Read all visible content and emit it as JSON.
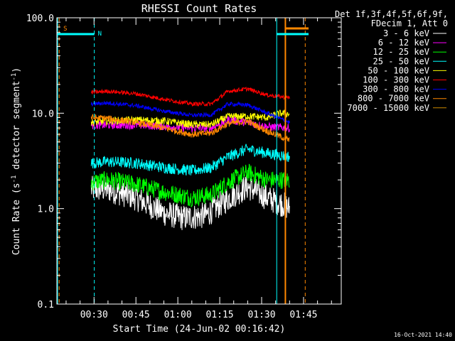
{
  "chart_data": {
    "type": "line",
    "title": "RHESSI Count Rates",
    "xlabel": "Start Time (24-Jun-02 00:16:42)",
    "ylabel": "Count Rate (s⁻¹ detector segment⁻¹)",
    "ylabel_parts": [
      "Count Rate (s",
      "-1",
      " detector segment",
      "-1",
      ")"
    ],
    "yscale": "log",
    "ylim": [
      0.1,
      100.0
    ],
    "xlim_minutes": [
      16.7,
      118.5
    ],
    "y_ticks": [
      {
        "value": 0.1,
        "label": "0.1"
      },
      {
        "value": 1.0,
        "label": "1.0"
      },
      {
        "value": 10.0,
        "label": "10.0"
      },
      {
        "value": 100.0,
        "label": "100.0"
      }
    ],
    "x_ticks": [
      {
        "value": 30,
        "label": "00:30"
      },
      {
        "value": 45,
        "label": "00:45"
      },
      {
        "value": 60,
        "label": "01:00"
      },
      {
        "value": 75,
        "label": "01:15"
      },
      {
        "value": 90,
        "label": "01:30"
      },
      {
        "value": 105,
        "label": "01:45"
      }
    ],
    "legend_header": [
      "Det 1f,3f,4f,5f,6f,9f,",
      "FDecim 1, Att 0"
    ],
    "series": [
      {
        "name": "3 - 6 keV",
        "color": "#ffffff",
        "points": [
          [
            29,
            1.6
          ],
          [
            35,
            1.6
          ],
          [
            45,
            1.3
          ],
          [
            55,
            0.9
          ],
          [
            62,
            0.8
          ],
          [
            70,
            0.85
          ],
          [
            75,
            1.1
          ],
          [
            80,
            1.4
          ],
          [
            85,
            1.7
          ],
          [
            92,
            1.3
          ],
          [
            98,
            1.1
          ],
          [
            100,
            1.0
          ]
        ]
      },
      {
        "name": "6 - 12 keV",
        "color": "#ff00ff",
        "points": [
          [
            29,
            7.5
          ],
          [
            35,
            7.5
          ],
          [
            45,
            7.5
          ],
          [
            55,
            7.3
          ],
          [
            65,
            7.0
          ],
          [
            72,
            7.0
          ],
          [
            78,
            8.5
          ],
          [
            85,
            8.0
          ],
          [
            92,
            7.2
          ],
          [
            100,
            7.0
          ]
        ]
      },
      {
        "name": "12 - 25 keV",
        "color": "#00ff00",
        "points": [
          [
            29,
            1.9
          ],
          [
            35,
            2.0
          ],
          [
            45,
            1.8
          ],
          [
            55,
            1.5
          ],
          [
            65,
            1.3
          ],
          [
            72,
            1.4
          ],
          [
            78,
            1.9
          ],
          [
            85,
            2.4
          ],
          [
            92,
            2.0
          ],
          [
            100,
            2.0
          ]
        ]
      },
      {
        "name": "25 - 50 keV",
        "color": "#00ffff",
        "points": [
          [
            29,
            3.0
          ],
          [
            35,
            3.1
          ],
          [
            45,
            3.0
          ],
          [
            55,
            2.7
          ],
          [
            65,
            2.5
          ],
          [
            72,
            2.7
          ],
          [
            78,
            3.5
          ],
          [
            85,
            4.2
          ],
          [
            92,
            3.8
          ],
          [
            100,
            3.5
          ]
        ]
      },
      {
        "name": "50 - 100 keV",
        "color": "#ffff00",
        "points": [
          [
            29,
            8.0
          ],
          [
            35,
            8.3
          ],
          [
            45,
            8.5
          ],
          [
            55,
            8.3
          ],
          [
            65,
            7.6
          ],
          [
            72,
            7.6
          ],
          [
            78,
            9.2
          ],
          [
            85,
            9.3
          ],
          [
            92,
            9.0
          ],
          [
            97,
            10.0
          ],
          [
            100,
            9.8
          ]
        ]
      },
      {
        "name": "100 - 300 keV",
        "color": "#ff0000",
        "points": [
          [
            29,
            16.5
          ],
          [
            35,
            17.0
          ],
          [
            45,
            16.0
          ],
          [
            55,
            14.0
          ],
          [
            65,
            12.5
          ],
          [
            72,
            12.5
          ],
          [
            78,
            17.0
          ],
          [
            85,
            18.0
          ],
          [
            92,
            15.5
          ],
          [
            100,
            14.5
          ]
        ]
      },
      {
        "name": "300 - 800 keV",
        "color": "#0000ff",
        "points": [
          [
            29,
            12.5
          ],
          [
            35,
            12.8
          ],
          [
            45,
            12.0
          ],
          [
            55,
            10.5
          ],
          [
            65,
            9.5
          ],
          [
            72,
            9.6
          ],
          [
            78,
            12.5
          ],
          [
            85,
            12.2
          ],
          [
            92,
            10.0
          ],
          [
            100,
            8.0
          ]
        ]
      },
      {
        "name": "800 - 7000 keV",
        "color": "#ff8800",
        "points": [
          [
            29,
            9.0
          ],
          [
            35,
            8.8
          ],
          [
            45,
            8.0
          ],
          [
            55,
            7.0
          ],
          [
            65,
            6.0
          ],
          [
            72,
            6.2
          ],
          [
            78,
            7.8
          ],
          [
            85,
            8.2
          ],
          [
            92,
            6.5
          ],
          [
            100,
            5.2
          ]
        ]
      },
      {
        "name": "7000 - 15000 keV",
        "color": "#cc8800",
        "points": []
      }
    ],
    "markers": [
      {
        "label": "S",
        "color": "#ff8800",
        "x_start": 17.5,
        "x_end": 30.0
      },
      {
        "label": "N",
        "color": "#00ffff",
        "x_start": 17.0,
        "x_end": 30.0
      }
    ],
    "timestamp": "16-Oct-2021 14:40"
  }
}
